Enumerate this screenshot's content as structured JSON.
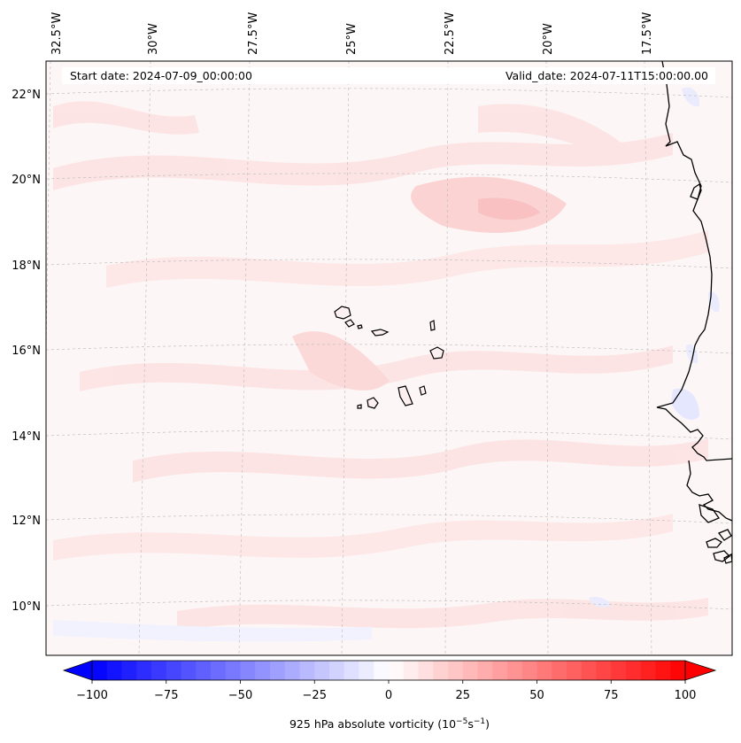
{
  "map": {
    "title_left": "Start date: 2024-07-09_00:00:00",
    "title_right": "Valid_date: 2024-07-11T15:00:00.00",
    "longitude_labels": [
      "32.5°W",
      "30°W",
      "27.5°W",
      "25°W",
      "22.5°W",
      "20°W",
      "17.5°W"
    ],
    "latitude_labels": [
      "22°N",
      "20°N",
      "18°N",
      "16°N",
      "14°N",
      "12°N",
      "10°N"
    ],
    "colors": {
      "coast": "#000000",
      "grid": "#b8b8b8",
      "field_base": "#fdf6f6",
      "weak_positive": "#fde3e3",
      "moderate_positive": "#fbd0d0",
      "weak_negative": "#eef0ff"
    }
  },
  "colorbar": {
    "label": "925 hPa absolute vorticity (10",
    "label_exp1": "−5",
    "label_mid": "s",
    "label_exp2": "−1",
    "label_end": ")",
    "tick_labels": [
      "−100",
      "−75",
      "−50",
      "−25",
      "0",
      "25",
      "50",
      "75",
      "100"
    ],
    "range": [
      -100,
      100
    ],
    "steps": 40,
    "neg_color": "#0000ff",
    "zero_color": "#ffffff",
    "pos_color": "#ff0000"
  }
}
